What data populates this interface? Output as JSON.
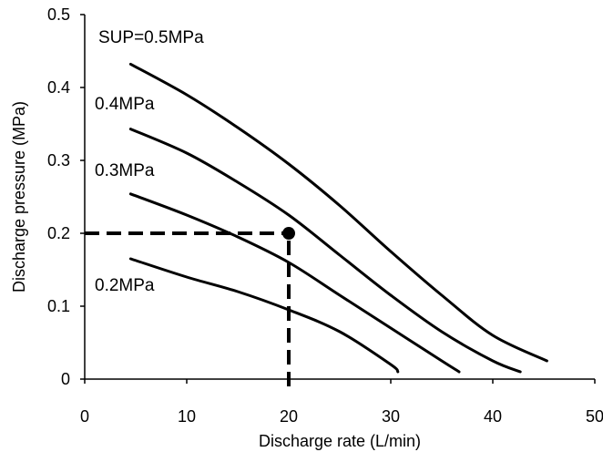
{
  "chart_data": {
    "type": "line",
    "xlabel": "Discharge rate (L/min)",
    "ylabel": "Discharge pressure (MPa)",
    "xlim": [
      0,
      50
    ],
    "ylim": [
      0,
      0.5
    ],
    "xticks": [
      "0",
      "10",
      "20",
      "30",
      "40",
      "50"
    ],
    "yticks": [
      "0",
      "0.1",
      "0.2",
      "0.3",
      "0.4",
      "0.5"
    ],
    "grid": false,
    "series": [
      {
        "name": "SUP=0.5MPa",
        "x": [
          4.5,
          10,
          15,
          20,
          25,
          30,
          35,
          40,
          45.3
        ],
        "y": [
          0.432,
          0.39,
          0.345,
          0.295,
          0.238,
          0.175,
          0.115,
          0.06,
          0.025
        ]
      },
      {
        "name": "0.4MPa",
        "x": [
          4.5,
          10,
          15,
          20,
          25,
          30,
          35,
          40,
          42.7
        ],
        "y": [
          0.343,
          0.31,
          0.27,
          0.225,
          0.17,
          0.115,
          0.065,
          0.025,
          0.01
        ]
      },
      {
        "name": "0.3MPa",
        "x": [
          4.5,
          10,
          15,
          20,
          25,
          30,
          35,
          36.7
        ],
        "y": [
          0.254,
          0.225,
          0.195,
          0.16,
          0.115,
          0.07,
          0.025,
          0.01
        ]
      },
      {
        "name": "0.2MPa",
        "x": [
          4.5,
          10,
          15,
          20,
          25,
          30,
          30.7
        ],
        "y": [
          0.165,
          0.14,
          0.12,
          0.095,
          0.065,
          0.02,
          0.01
        ]
      }
    ],
    "marker_point": {
      "x": 20,
      "y": 0.2
    },
    "reference_lines": [
      {
        "orientation": "horizontal",
        "y": 0.2,
        "x_from": 0,
        "x_to": 20,
        "style": "dashed"
      },
      {
        "orientation": "vertical",
        "x": 20,
        "y_from": -0.01,
        "y_to": 0.2,
        "style": "dashed"
      }
    ]
  },
  "annotations": {
    "sup05": "SUP=0.5MPa",
    "p04": "0.4MPa",
    "p03": "0.3MPa",
    "p02": "0.2MPa"
  }
}
